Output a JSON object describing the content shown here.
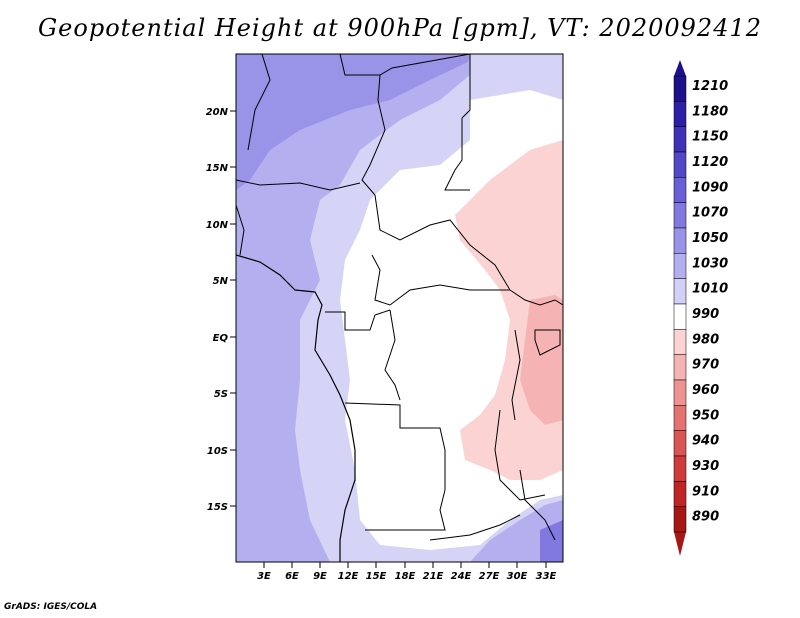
{
  "title": "Geopotential Height at 900hPa [gpm], VT: 2020092412",
  "credit": "GrADS: IGES/COLA",
  "map": {
    "lat_ticks": [
      "20N",
      "15N",
      "10N",
      "5N",
      "EQ",
      "5S",
      "10S",
      "15S"
    ],
    "lon_ticks": [
      "3E",
      "6E",
      "9E",
      "12E",
      "15E",
      "18E",
      "21E",
      "24E",
      "27E",
      "30E",
      "33E"
    ]
  },
  "colorbar": {
    "levels": [
      "1210",
      "1180",
      "1150",
      "1120",
      "1090",
      "1070",
      "1050",
      "1030",
      "1010",
      "990",
      "980",
      "970",
      "960",
      "950",
      "940",
      "930",
      "910",
      "890"
    ],
    "colors": [
      "#1e0f8c",
      "#2d1fa5",
      "#3f31b8",
      "#5247c8",
      "#6a60d6",
      "#8178e0",
      "#9a94e8",
      "#b4b0ef",
      "#d2d0f6",
      "#ffffff",
      "#fbd3d3",
      "#f6b3b3",
      "#ee9292",
      "#e57272",
      "#db5454",
      "#cf3a3a",
      "#bf2525",
      "#a81616"
    ]
  }
}
